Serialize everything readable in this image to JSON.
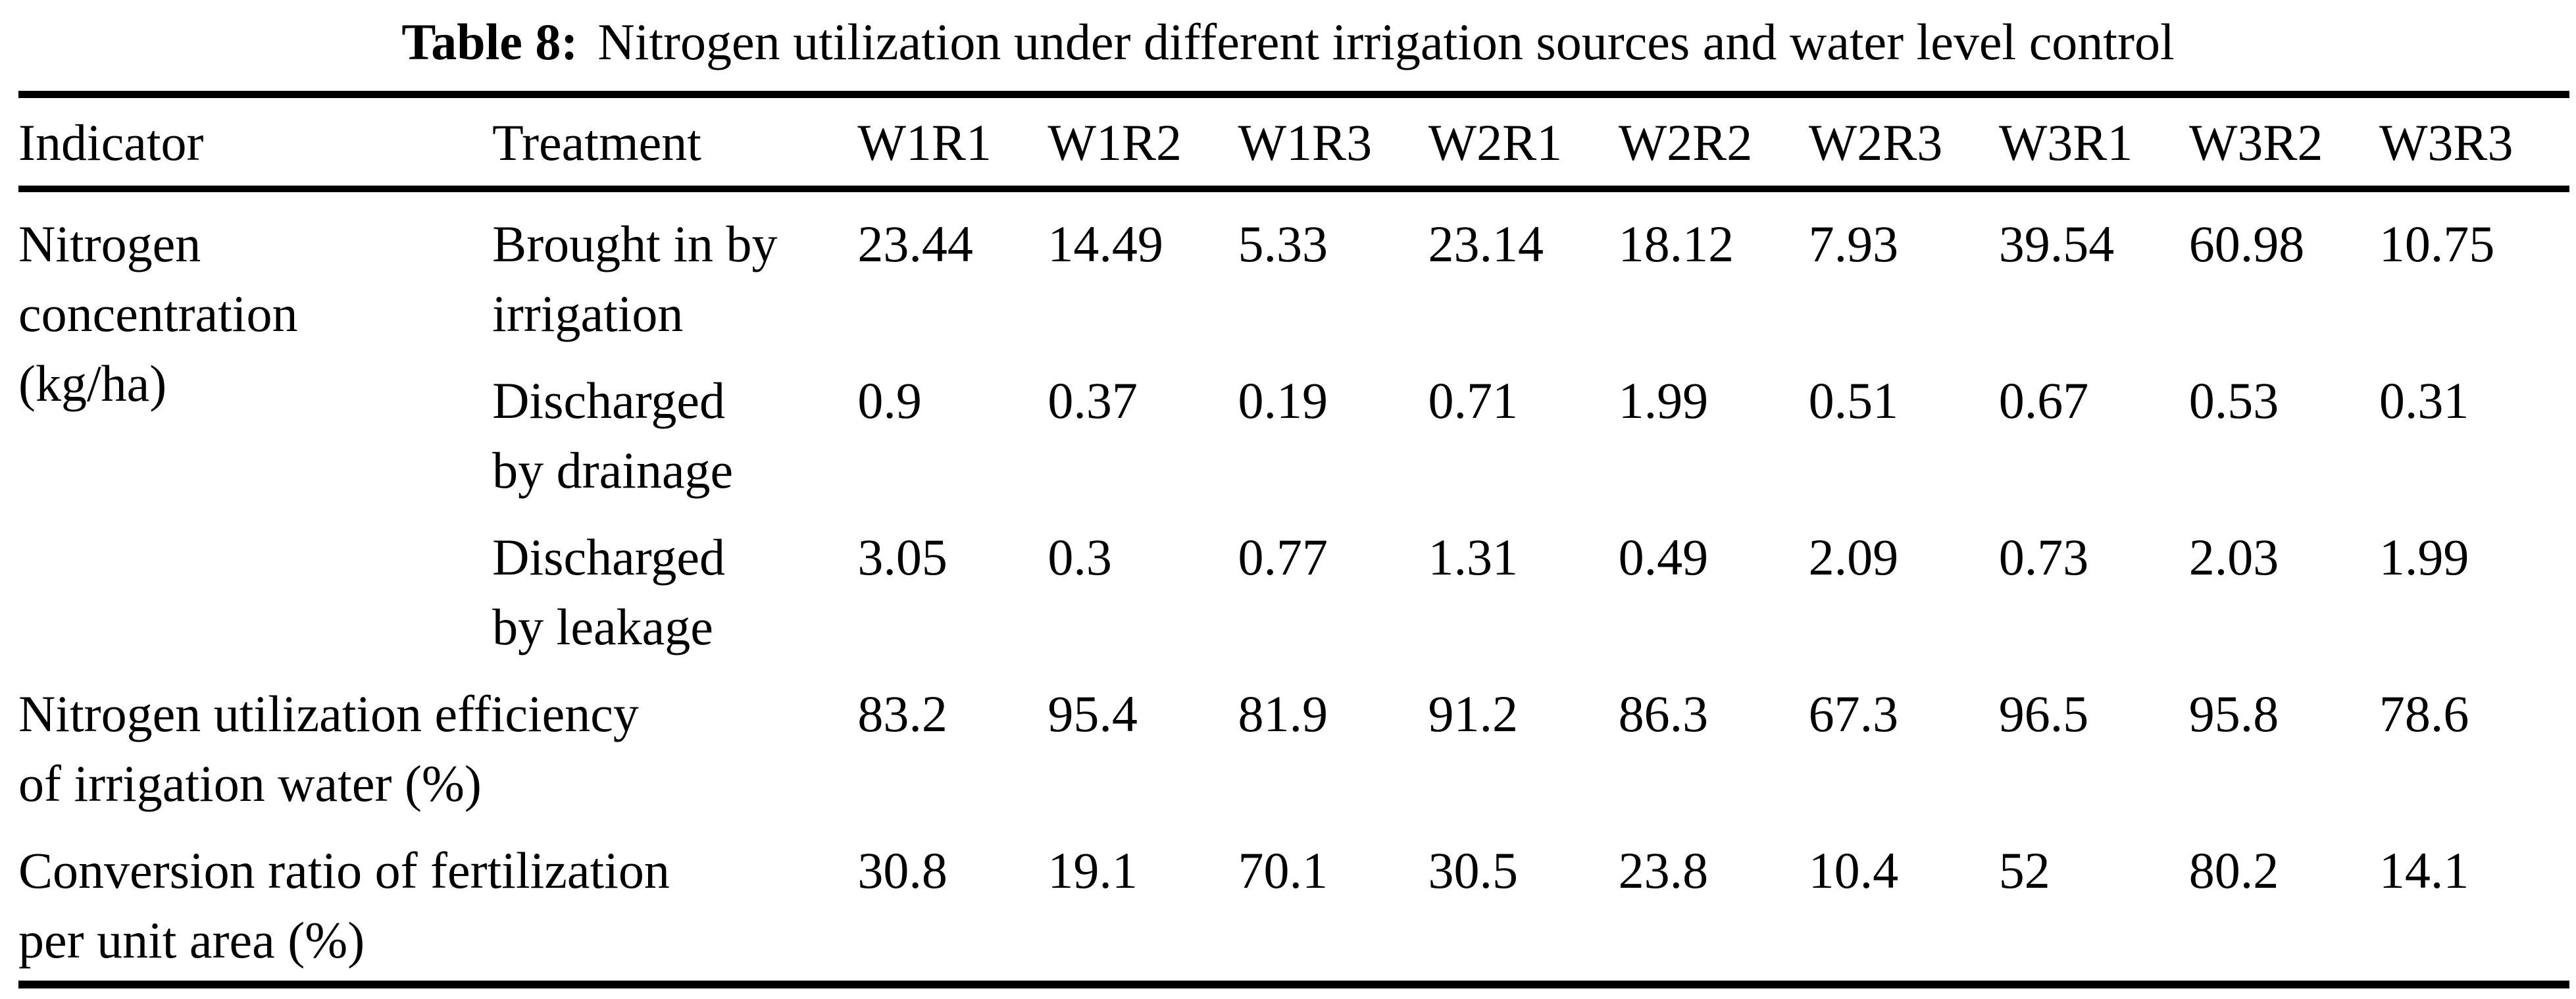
{
  "colors": {
    "text": "#000000",
    "background": "#ffffff",
    "rule": "#000000"
  },
  "caption": {
    "label": "Table 8:",
    "text": "Nitrogen utilization under different irrigation sources and water level control"
  },
  "table": {
    "columns": [
      "Indicator",
      "Treatment",
      "W1R1",
      "W1R2",
      "W1R3",
      "W2R1",
      "W2R2",
      "W2R3",
      "W3R1",
      "W3R2",
      "W3R3"
    ],
    "groups": [
      {
        "indicator": "Nitrogen\nconcentration\n(kg/ha)",
        "rows": [
          {
            "treatment": "Brought in by\nirrigation",
            "values": [
              "23.44",
              "14.49",
              "5.33",
              "23.14",
              "18.12",
              "7.93",
              "39.54",
              "60.98",
              "10.75"
            ]
          },
          {
            "treatment": "Discharged\nby drainage",
            "values": [
              "0.9",
              "0.37",
              "0.19",
              "0.71",
              "1.99",
              "0.51",
              "0.67",
              "0.53",
              "0.31"
            ]
          },
          {
            "treatment": "Discharged\nby leakage",
            "values": [
              "3.05",
              "0.3",
              "0.77",
              "1.31",
              "0.49",
              "2.09",
              "0.73",
              "2.03",
              "1.99"
            ]
          }
        ]
      },
      {
        "indicator": "Nitrogen utilization efficiency\nof irrigation water (%)",
        "rows": [
          {
            "treatment": "",
            "values": [
              "83.2",
              "95.4",
              "81.9",
              "91.2",
              "86.3",
              "67.3",
              "96.5",
              "95.8",
              "78.6"
            ]
          }
        ]
      },
      {
        "indicator": "Conversion ratio of fertilization\nper unit area (%)",
        "rows": [
          {
            "treatment": "",
            "values": [
              "30.8",
              "19.1",
              "70.1",
              "30.5",
              "23.8",
              "10.4",
              "52",
              "80.2",
              "14.1"
            ]
          }
        ]
      }
    ]
  }
}
